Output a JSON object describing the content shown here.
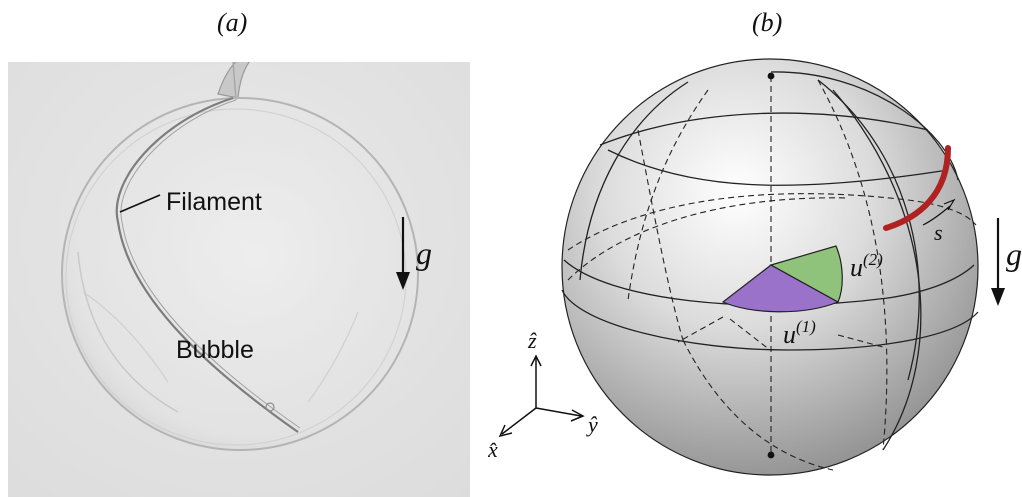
{
  "panel_a": {
    "label": "(a)",
    "filament_label": "Filament",
    "bubble_label": "Bubble",
    "gravity_label": "g"
  },
  "panel_b": {
    "label": "(b)",
    "gravity_label": "g",
    "arc_label": "s",
    "u1_base": "u",
    "u1_sup": "(1)",
    "u2_base": "u",
    "u2_sup": "(2)",
    "axis_z": "ẑ",
    "axis_y": "ŷ",
    "axis_x": "x̂",
    "colors": {
      "filament": "#b02222",
      "u1_sector": "#9b72c9",
      "u2_sector": "#8fc27a"
    }
  }
}
